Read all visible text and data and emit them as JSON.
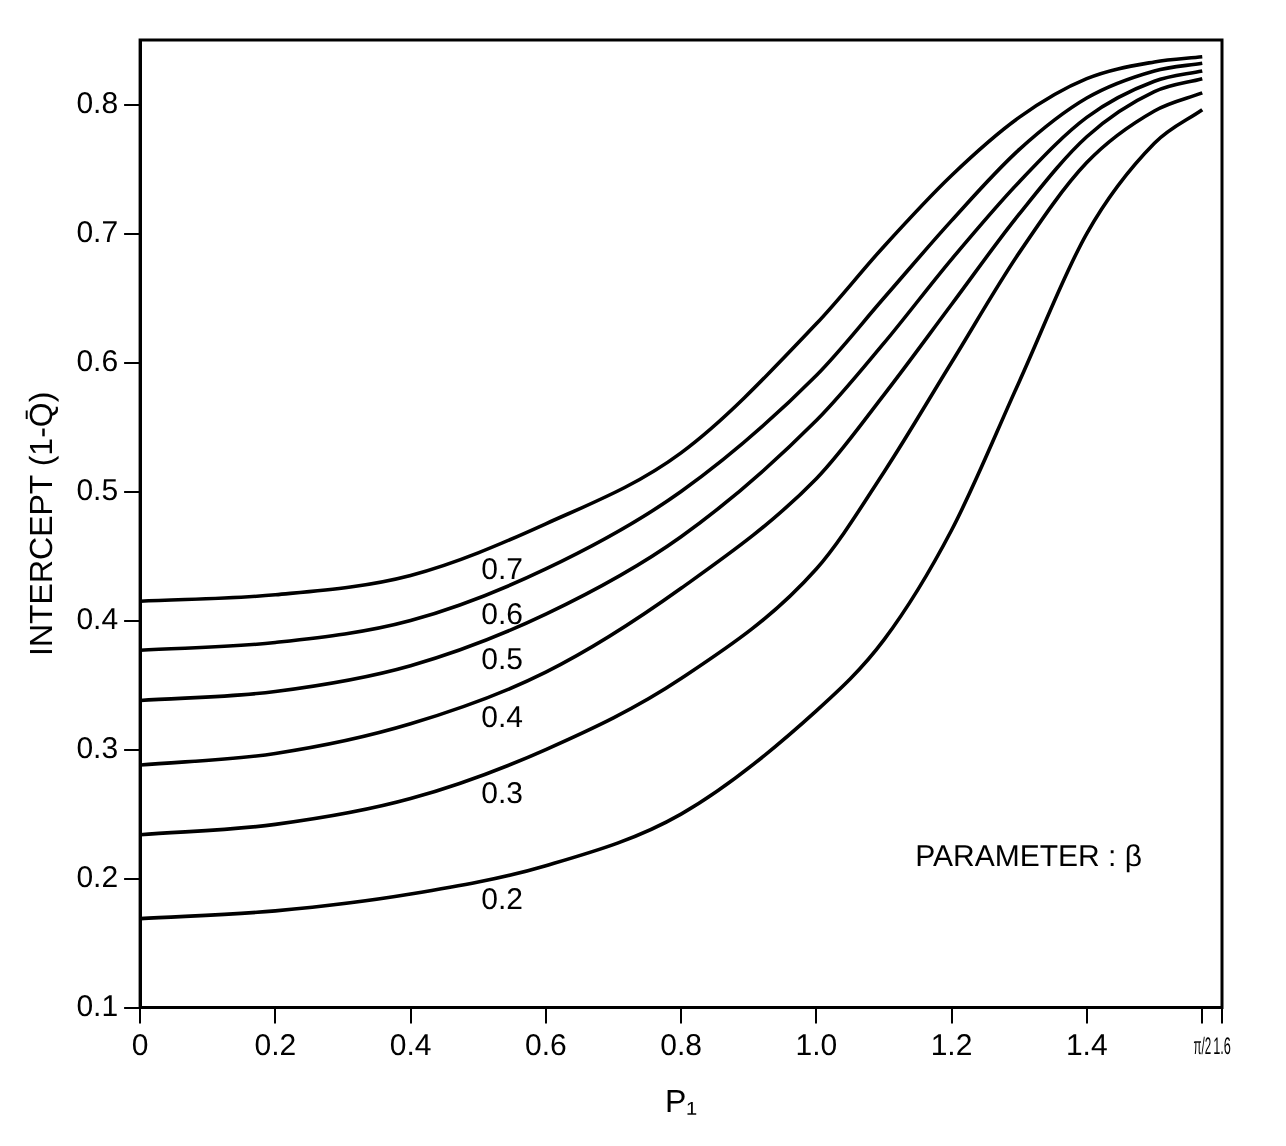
{
  "chart_data": {
    "type": "line",
    "xlabel": "P₁",
    "ylabel": "INTERCEPT (1-Q̄)",
    "x": [
      0,
      0.2,
      0.4,
      0.6,
      0.8,
      1.0,
      1.1,
      1.2,
      1.3,
      1.4,
      1.5,
      1.5708
    ],
    "series": [
      {
        "name": "0.7",
        "color": "#000000",
        "values": [
          0.415,
          0.42,
          0.435,
          0.475,
          0.53,
          0.63,
          0.69,
          0.745,
          0.79,
          0.82,
          0.833,
          0.837
        ]
      },
      {
        "name": "0.6",
        "color": "#000000",
        "values": [
          0.377,
          0.383,
          0.4,
          0.44,
          0.5,
          0.59,
          0.65,
          0.71,
          0.765,
          0.805,
          0.826,
          0.832
        ]
      },
      {
        "name": "0.5",
        "color": "#000000",
        "values": [
          0.338,
          0.345,
          0.365,
          0.405,
          0.465,
          0.555,
          0.615,
          0.68,
          0.74,
          0.79,
          0.818,
          0.826
        ]
      },
      {
        "name": "0.4",
        "color": "#000000",
        "values": [
          0.288,
          0.297,
          0.32,
          0.36,
          0.425,
          0.51,
          0.575,
          0.645,
          0.715,
          0.775,
          0.81,
          0.82
        ]
      },
      {
        "name": "0.3",
        "color": "#000000",
        "values": [
          0.234,
          0.242,
          0.262,
          0.3,
          0.355,
          0.44,
          0.515,
          0.6,
          0.685,
          0.755,
          0.795,
          0.809
        ]
      },
      {
        "name": "0.2",
        "color": "#000000",
        "values": [
          0.169,
          0.175,
          0.188,
          0.21,
          0.25,
          0.33,
          0.385,
          0.47,
          0.585,
          0.7,
          0.77,
          0.796
        ]
      }
    ],
    "xlim": [
      0,
      1.6
    ],
    "xticks": [
      0,
      0.2,
      0.4,
      0.6,
      0.8,
      {
        "value": 1,
        "label": "1.0"
      },
      1.2,
      1.4,
      {
        "value": 1.5708,
        "label": "π/2"
      },
      1.6
    ],
    "ylim": [
      0.1,
      0.85
    ],
    "yticks": [
      0.1,
      0.2,
      0.3,
      0.4,
      0.5,
      0.6,
      0.7,
      0.8
    ],
    "annotations": [
      "PARAMETER : β"
    ],
    "grid": false,
    "legend": false,
    "marker": "none",
    "line_style": "solid"
  }
}
